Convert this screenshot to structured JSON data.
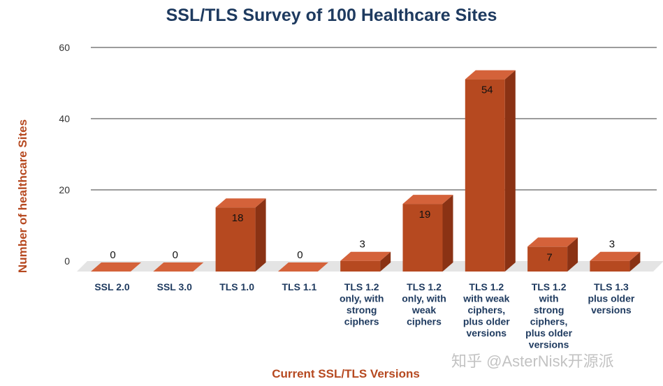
{
  "chart_data": {
    "type": "bar",
    "title": "SSL/TLS Survey of 100 Healthcare Sites",
    "xlabel": "Current SSL/TLS Versions",
    "ylabel": "Number of healthcare Sites",
    "ylim": [
      0,
      60
    ],
    "yticks": [
      0,
      20,
      40,
      60
    ],
    "grid": true,
    "categories": [
      [
        "SSL 2.0"
      ],
      [
        "SSL 3.0"
      ],
      [
        "TLS 1.0"
      ],
      [
        "TLS 1.1"
      ],
      [
        "TLS 1.2",
        "only, with",
        "strong",
        "ciphers"
      ],
      [
        "TLS 1.2",
        "only, with",
        "weak",
        "ciphers"
      ],
      [
        "TLS 1.2",
        "with weak",
        "ciphers,",
        "plus older",
        "versions"
      ],
      [
        "TLS 1.2",
        "with",
        "strong",
        "ciphers,",
        "plus older",
        "versions"
      ],
      [
        "TLS 1.3",
        "plus older",
        "versions"
      ]
    ],
    "values": [
      0,
      0,
      18,
      0,
      3,
      19,
      54,
      7,
      3
    ],
    "bar_color": "#b64920",
    "bar_top_color": "#d4623a",
    "bar_side_color": "#8a3214"
  },
  "watermark": "知乎 @AsterNisk开源派"
}
